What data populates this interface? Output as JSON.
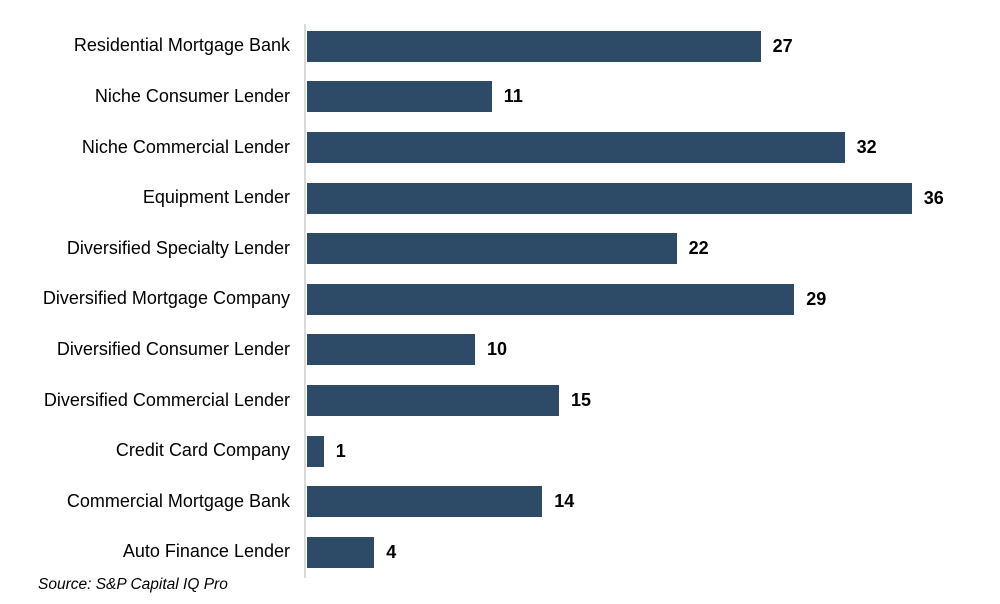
{
  "chart_data": {
    "type": "bar",
    "orientation": "horizontal",
    "title": "",
    "categories": [
      "Residential Mortgage Bank",
      "Niche Consumer Lender",
      "Niche Commercial Lender",
      "Equipment Lender",
      "Diversified Specialty Lender",
      "Diversified Mortgage Company",
      "Diversified Consumer Lender",
      "Diversified Commercial Lender",
      "Credit Card Company",
      "Commercial Mortgage Bank",
      "Auto Finance Lender"
    ],
    "values": [
      27,
      11,
      32,
      36,
      22,
      29,
      10,
      15,
      1,
      14,
      4
    ],
    "xlim": [
      0,
      40
    ],
    "grid": false,
    "legend": false,
    "value_labels_shown": true,
    "bar_color": "#2D4B66",
    "axis_line_color": "#D9D9D9",
    "category_label_color": "#000000",
    "value_label_color": "#000000",
    "source_note": "Source: S&P Capital IQ Pro"
  }
}
